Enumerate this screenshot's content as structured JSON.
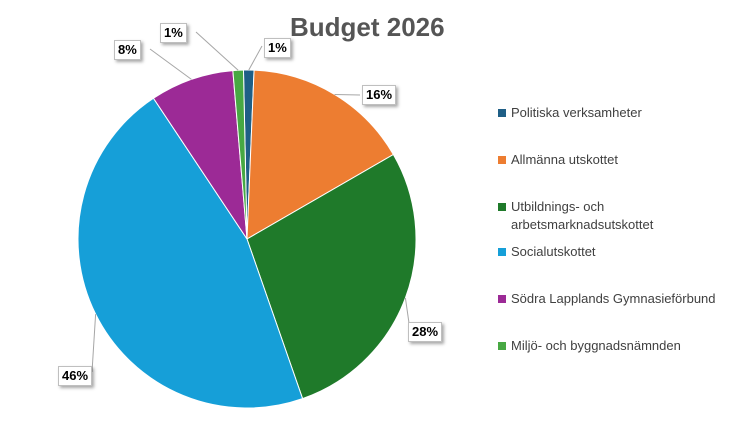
{
  "chart_data": {
    "type": "pie",
    "title": "Budget 2026",
    "categories": [
      "Politiska verksamheter",
      "Allmänna utskottet",
      "Utbildnings- och arbetsmarknadsutskottet",
      "Socialutskottet",
      "Södra Lapplands Gymnasieförbund",
      "Miljö- och byggnadsnämnden"
    ],
    "values": [
      1,
      16,
      28,
      46,
      8,
      1
    ],
    "data_labels": [
      "1%",
      "16%",
      "28%",
      "46%",
      "8%",
      "1%"
    ],
    "colors": [
      "#1f5f86",
      "#ed7d31",
      "#1f7a2a",
      "#169fd8",
      "#9c2a96",
      "#47a843"
    ],
    "legend_position": "right",
    "legend_line2": "arbetsmarknadsutskottet"
  }
}
